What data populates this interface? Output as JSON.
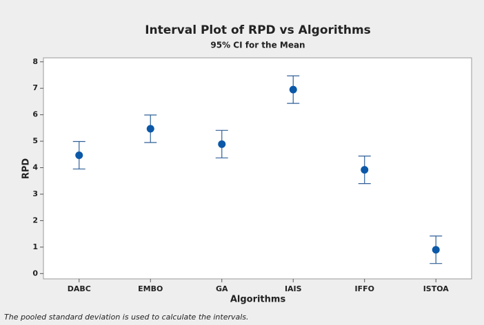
{
  "chart_data": {
    "type": "interval",
    "title": "Interval Plot of RPD vs Algorithms",
    "subtitle": "95% CI for the Mean",
    "x_label": "Algorithms",
    "y_label": "RPD",
    "footnote": "The pooled standard deviation is used to calculate the intervals.",
    "categories": [
      "DABC",
      "EMBO",
      "GA",
      "IAIS",
      "IFFO",
      "ISTOA"
    ],
    "values": [
      4.47,
      5.47,
      4.89,
      6.95,
      3.92,
      0.9
    ],
    "errors": [
      0.52,
      0.52,
      0.52,
      0.52,
      0.52,
      0.52
    ],
    "color": "#0b58a8",
    "ylim": [
      -0.2,
      8.15
    ],
    "yticks": [
      0,
      1,
      2,
      3,
      4,
      5,
      6,
      7,
      8
    ]
  }
}
